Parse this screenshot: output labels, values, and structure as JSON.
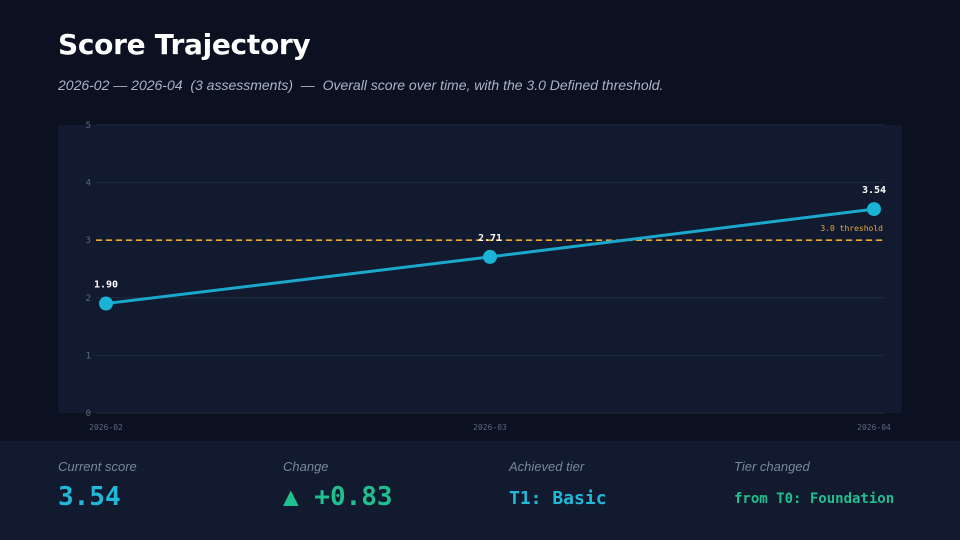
{
  "header": {
    "title": "Score Trajectory",
    "subtitle": "2026-02 — 2026-04  (3 assessments)  —  Overall score over time, with the 3.0 Defined threshold."
  },
  "chart_data": {
    "type": "line",
    "title": "",
    "xlabel": "",
    "ylabel": "",
    "x": [
      "2026-02",
      "2026-03",
      "2026-04"
    ],
    "series": [
      {
        "values": [
          1.9,
          2.71,
          3.54
        ],
        "data_labels": [
          "1.90",
          "2.71",
          "3.54"
        ],
        "color": "#1aa8cc"
      }
    ],
    "ylim": [
      0,
      5
    ],
    "yticks": [
      "0",
      "1",
      "2",
      "3",
      "4",
      "5"
    ],
    "threshold": {
      "value": 3.0,
      "label": "3.0 threshold",
      "color": "#f0a830"
    },
    "grid": true
  },
  "stats": [
    {
      "label": "Current score",
      "value": "3.54"
    },
    {
      "label": "Change",
      "value": "▲ +0.83"
    },
    {
      "label": "Achieved tier",
      "value": "T1: Basic"
    },
    {
      "label": "Tier changed",
      "value": "from T0: Foundation"
    }
  ],
  "colors": {
    "background": "#0b1120",
    "panel": "#111a2e",
    "accent": "#22b8d8",
    "positive": "#1fbf8f",
    "threshold": "#f0a830"
  }
}
